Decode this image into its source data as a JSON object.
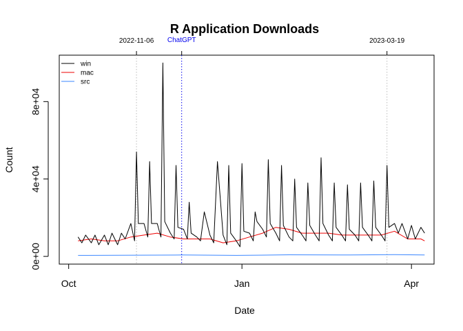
{
  "chart_data": {
    "type": "line",
    "title": "R Application Downloads",
    "xlabel": "Date",
    "ylabel": "Count",
    "xlim": [
      "2022-09-26",
      "2023-04-13"
    ],
    "ylim": [
      -4000,
      104000
    ],
    "x_ticks": [
      {
        "date": "2022-10-01",
        "label": "Oct"
      },
      {
        "date": "2023-01-01",
        "label": "Jan"
      },
      {
        "date": "2023-04-01",
        "label": "Apr"
      }
    ],
    "y_ticks": [
      {
        "value": 0,
        "label": "0e+00"
      },
      {
        "value": 40000,
        "label": "4e+04"
      },
      {
        "value": 80000,
        "label": "8e+04"
      }
    ],
    "legend_position": "top-left",
    "grid": false,
    "annotations": [
      {
        "date": "2022-11-06",
        "label": "2022-11-06",
        "color": "#bbbbbb",
        "style": "dotted"
      },
      {
        "date": "2022-11-30",
        "label": "ChatGPT",
        "color": "#0000ee",
        "style": "dotted"
      },
      {
        "date": "2023-03-19",
        "label": "2023-03-19",
        "color": "#bbbbbb",
        "style": "dotted"
      }
    ],
    "series": [
      {
        "name": "win",
        "color": "#000000",
        "x": [
          "2022-10-06",
          "2022-10-08",
          "2022-10-10",
          "2022-10-13",
          "2022-10-15",
          "2022-10-17",
          "2022-10-20",
          "2022-10-22",
          "2022-10-24",
          "2022-10-27",
          "2022-10-29",
          "2022-10-31",
          "2022-11-03",
          "2022-11-05",
          "2022-11-06",
          "2022-11-07",
          "2022-11-10",
          "2022-11-12",
          "2022-11-13",
          "2022-11-14",
          "2022-11-17",
          "2022-11-19",
          "2022-11-20",
          "2022-11-21",
          "2022-11-24",
          "2022-11-26",
          "2022-11-27",
          "2022-11-28",
          "2022-12-01",
          "2022-12-03",
          "2022-12-04",
          "2022-12-05",
          "2022-12-08",
          "2022-12-10",
          "2022-12-12",
          "2022-12-15",
          "2022-12-17",
          "2022-12-19",
          "2022-12-22",
          "2022-12-24",
          "2022-12-25",
          "2022-12-26",
          "2022-12-29",
          "2022-12-31",
          "2023-01-01",
          "2023-01-02",
          "2023-01-05",
          "2023-01-07",
          "2023-01-08",
          "2023-01-09",
          "2023-01-12",
          "2023-01-14",
          "2023-01-15",
          "2023-01-16",
          "2023-01-19",
          "2023-01-21",
          "2023-01-22",
          "2023-01-23",
          "2023-01-26",
          "2023-01-28",
          "2023-01-29",
          "2023-01-30",
          "2023-02-02",
          "2023-02-04",
          "2023-02-05",
          "2023-02-06",
          "2023-02-09",
          "2023-02-11",
          "2023-02-12",
          "2023-02-13",
          "2023-02-16",
          "2023-02-18",
          "2023-02-19",
          "2023-02-20",
          "2023-02-23",
          "2023-02-25",
          "2023-02-26",
          "2023-02-27",
          "2023-03-02",
          "2023-03-04",
          "2023-03-05",
          "2023-03-06",
          "2023-03-09",
          "2023-03-11",
          "2023-03-12",
          "2023-03-13",
          "2023-03-16",
          "2023-03-18",
          "2023-03-19",
          "2023-03-20",
          "2023-03-23",
          "2023-03-25",
          "2023-03-27",
          "2023-03-30",
          "2023-04-01",
          "2023-04-03",
          "2023-04-06",
          "2023-04-08"
        ],
        "y": [
          10000,
          7000,
          11000,
          7000,
          11000,
          6000,
          11000,
          6000,
          12000,
          6000,
          12000,
          9000,
          17000,
          8000,
          54000,
          17000,
          17000,
          10000,
          49000,
          17000,
          17000,
          10000,
          100000,
          18000,
          12000,
          9000,
          47000,
          15000,
          14000,
          9000,
          28000,
          12000,
          10000,
          8000,
          23000,
          11000,
          7000,
          49000,
          11000,
          6000,
          47000,
          12000,
          8000,
          5000,
          48000,
          13000,
          12000,
          8000,
          23000,
          18000,
          14000,
          10000,
          50000,
          17000,
          12000,
          8000,
          47000,
          16000,
          10000,
          8000,
          40000,
          15000,
          11000,
          8000,
          38000,
          16000,
          11000,
          8000,
          51000,
          17000,
          11000,
          8000,
          38000,
          15000,
          11000,
          8000,
          37000,
          14000,
          11000,
          8000,
          38000,
          15000,
          11000,
          8000,
          39000,
          15000,
          11000,
          8000,
          47000,
          15000,
          17000,
          12000,
          17000,
          9000,
          16000,
          9000,
          15000,
          12000
        ]
      },
      {
        "name": "mac",
        "color": "#ee0000",
        "x": [
          "2022-10-06",
          "2022-10-13",
          "2022-10-20",
          "2022-10-27",
          "2022-11-03",
          "2022-11-10",
          "2022-11-17",
          "2022-11-24",
          "2022-12-01",
          "2022-12-08",
          "2022-12-15",
          "2022-12-22",
          "2022-12-29",
          "2023-01-05",
          "2023-01-12",
          "2023-01-19",
          "2023-01-26",
          "2023-02-02",
          "2023-02-09",
          "2023-02-16",
          "2023-02-23",
          "2023-03-02",
          "2023-03-09",
          "2023-03-16",
          "2023-03-23",
          "2023-03-30",
          "2023-04-06",
          "2023-04-08"
        ],
        "y": [
          8000,
          9000,
          8000,
          8000,
          10000,
          11000,
          12000,
          10000,
          9000,
          9000,
          9000,
          7000,
          8000,
          10000,
          12000,
          15000,
          14000,
          12000,
          12000,
          12000,
          11000,
          11000,
          11000,
          11000,
          13000,
          9000,
          9000,
          8000
        ]
      },
      {
        "name": "src",
        "color": "#3a86ff",
        "x": [
          "2022-10-06",
          "2022-11-03",
          "2022-12-01",
          "2022-12-29",
          "2023-01-26",
          "2023-02-23",
          "2023-03-23",
          "2023-04-08"
        ],
        "y": [
          500,
          600,
          700,
          500,
          800,
          700,
          900,
          700
        ]
      }
    ]
  }
}
